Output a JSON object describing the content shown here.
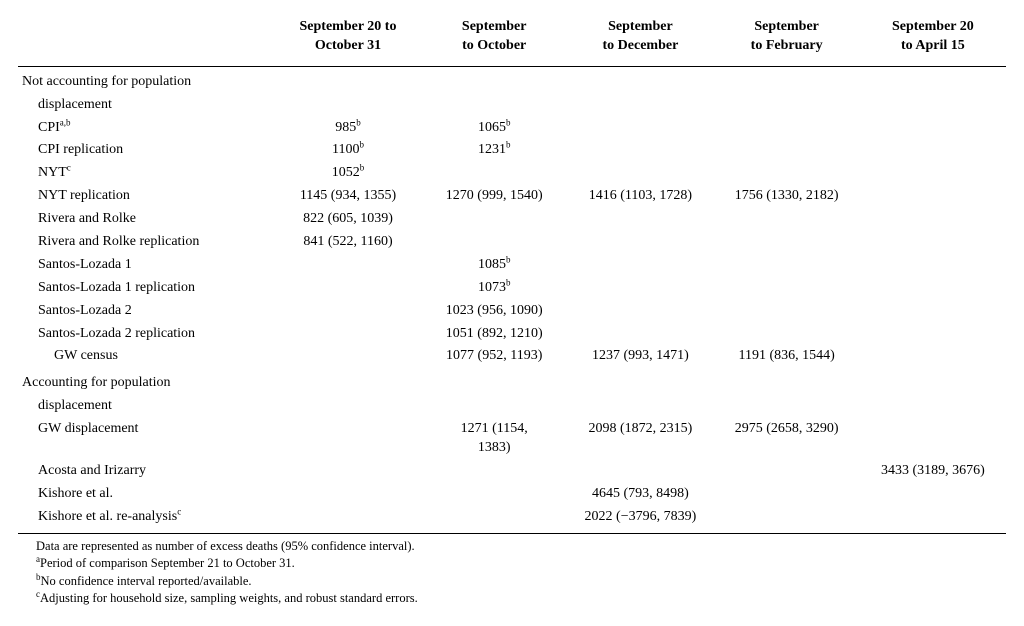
{
  "columns": [
    {
      "lines": [
        "September 20 to",
        "October 31"
      ]
    },
    {
      "lines": [
        "September",
        "to October"
      ]
    },
    {
      "lines": [
        "September",
        "to December"
      ]
    },
    {
      "lines": [
        "September",
        "to February"
      ]
    },
    {
      "lines": [
        "September 20",
        "to April 15"
      ]
    }
  ],
  "sections": [
    {
      "title_lines": [
        "Not accounting for population",
        "displacement"
      ],
      "rows": [
        {
          "indent": 1,
          "label": {
            "text": "CPI",
            "sup": "a,b"
          },
          "cells": [
            {
              "text": "985",
              "sup": "b"
            },
            {
              "text": "1065",
              "sup": "b"
            },
            {
              "text": ""
            },
            {
              "text": ""
            },
            {
              "text": ""
            }
          ]
        },
        {
          "indent": 1,
          "label": {
            "text": "CPI replication"
          },
          "cells": [
            {
              "text": "1100",
              "sup": "b"
            },
            {
              "text": "1231",
              "sup": "b"
            },
            {
              "text": ""
            },
            {
              "text": ""
            },
            {
              "text": ""
            }
          ]
        },
        {
          "indent": 1,
          "label": {
            "text": "NYT",
            "sup": "c"
          },
          "cells": [
            {
              "text": "1052",
              "sup": "b"
            },
            {
              "text": ""
            },
            {
              "text": ""
            },
            {
              "text": ""
            },
            {
              "text": ""
            }
          ]
        },
        {
          "indent": 1,
          "label": {
            "text": "NYT replication"
          },
          "cells": [
            {
              "text": "1145 (934, 1355)"
            },
            {
              "text": "1270 (999, 1540)"
            },
            {
              "text": "1416 (1103, 1728)"
            },
            {
              "text": "1756 (1330, 2182)"
            },
            {
              "text": ""
            }
          ]
        },
        {
          "indent": 1,
          "label": {
            "text": "Rivera and Rolke"
          },
          "cells": [
            {
              "text": "822 (605, 1039)"
            },
            {
              "text": ""
            },
            {
              "text": ""
            },
            {
              "text": ""
            },
            {
              "text": ""
            }
          ]
        },
        {
          "indent": 1,
          "label": {
            "text": "Rivera and Rolke replication"
          },
          "cells": [
            {
              "text": "841 (522, 1160)"
            },
            {
              "text": ""
            },
            {
              "text": ""
            },
            {
              "text": ""
            },
            {
              "text": ""
            }
          ]
        },
        {
          "indent": 1,
          "label": {
            "text": "Santos-Lozada 1"
          },
          "cells": [
            {
              "text": ""
            },
            {
              "text": "1085",
              "sup": "b"
            },
            {
              "text": ""
            },
            {
              "text": ""
            },
            {
              "text": ""
            }
          ]
        },
        {
          "indent": 1,
          "label": {
            "text": "Santos-Lozada 1 replication"
          },
          "cells": [
            {
              "text": ""
            },
            {
              "text": "1073",
              "sup": "b"
            },
            {
              "text": ""
            },
            {
              "text": ""
            },
            {
              "text": ""
            }
          ]
        },
        {
          "indent": 1,
          "label": {
            "text": "Santos-Lozada 2"
          },
          "cells": [
            {
              "text": ""
            },
            {
              "text": "1023 (956, 1090)"
            },
            {
              "text": ""
            },
            {
              "text": ""
            },
            {
              "text": ""
            }
          ]
        },
        {
          "indent": 1,
          "label": {
            "text": "Santos-Lozada 2 replication"
          },
          "cells": [
            {
              "text": ""
            },
            {
              "text": "1051 (892, 1210)"
            },
            {
              "text": ""
            },
            {
              "text": ""
            },
            {
              "text": ""
            }
          ]
        },
        {
          "indent": 2,
          "label": {
            "text": "GW census"
          },
          "cells": [
            {
              "text": ""
            },
            {
              "text": "1077 (952, 1193)"
            },
            {
              "text": "1237 (993, 1471)"
            },
            {
              "text": "1191 (836, 1544)"
            },
            {
              "text": ""
            }
          ]
        }
      ]
    },
    {
      "title_lines": [
        "Accounting for population",
        "displacement"
      ],
      "rows": [
        {
          "indent": 1,
          "label": {
            "text": "GW displacement"
          },
          "cells": [
            {
              "text": ""
            },
            {
              "text": "1271 (1154,\n1383)"
            },
            {
              "text": "2098 (1872, 2315)"
            },
            {
              "text": "2975 (2658, 3290)"
            },
            {
              "text": ""
            }
          ]
        },
        {
          "indent": 1,
          "label": {
            "text": "Acosta and Irizarry"
          },
          "cells": [
            {
              "text": ""
            },
            {
              "text": ""
            },
            {
              "text": ""
            },
            {
              "text": ""
            },
            {
              "text": "3433 (3189, 3676)"
            }
          ]
        },
        {
          "indent": 1,
          "label": {
            "text": "Kishore et al."
          },
          "cells": [
            {
              "text": ""
            },
            {
              "text": ""
            },
            {
              "text": "4645 (793, 8498)"
            },
            {
              "text": ""
            },
            {
              "text": ""
            }
          ]
        },
        {
          "indent": 1,
          "label": {
            "text": "Kishore et al. re-analysis",
            "sup": "c"
          },
          "cells": [
            {
              "text": ""
            },
            {
              "text": ""
            },
            {
              "text": "2022 (−3796, 7839)"
            },
            {
              "text": ""
            },
            {
              "text": ""
            }
          ]
        }
      ]
    }
  ],
  "footnotes": [
    {
      "sup": "",
      "text": "Data are represented as number of excess deaths (95% confidence interval)."
    },
    {
      "sup": "a",
      "text": "Period of comparison September 21 to October 31."
    },
    {
      "sup": "b",
      "text": "No confidence interval reported/available."
    },
    {
      "sup": "c",
      "text": "Adjusting for household size, sampling weights, and robust standard errors."
    }
  ]
}
